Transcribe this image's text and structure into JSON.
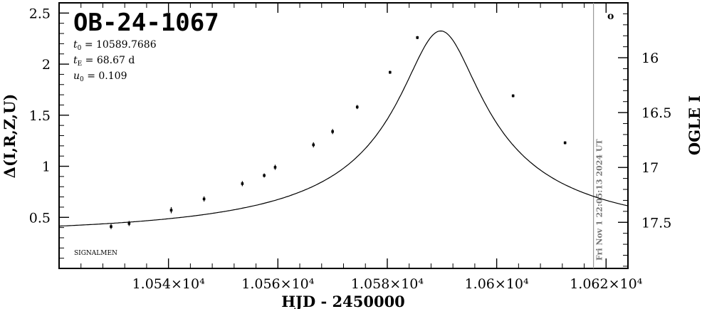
{
  "chart_data": {
    "type": "scatter",
    "title": "OB-24-1067",
    "xlabel": "HJD - 2450000",
    "ylabel_left": "Δ(I,R,Z,U)",
    "ylabel_right": "OGLE I",
    "xlim": [
      10520,
      10624
    ],
    "ylim_left": [
      0.0,
      2.6
    ],
    "ylim_right": [
      17.92,
      15.5
    ],
    "x_ticks": [
      10540,
      10560,
      10580,
      10600,
      10620
    ],
    "x_tick_labels": [
      "1.054×10⁴",
      "1.056×10⁴",
      "1.058×10⁴",
      "1.06×10⁴",
      "1.062×10⁴"
    ],
    "y_ticks_left": [
      0.5,
      1,
      1.5,
      2,
      2.5
    ],
    "y_tick_labels_left": [
      "0.5",
      "1",
      "1.5",
      "2",
      "2.5"
    ],
    "y_ticks_right": [
      16,
      16.5,
      17,
      17.5
    ],
    "y_tick_labels_right": [
      "16",
      "16.5",
      "17",
      "17.5"
    ],
    "params": [
      {
        "sym": "t",
        "sub": "0",
        "text": " = 10589.7686"
      },
      {
        "sym": "t",
        "sub": "E",
        "text": " = 68.67 d"
      },
      {
        "sym": "u",
        "sub": "0",
        "text": " = 0.109"
      }
    ],
    "model": {
      "t0": 10589.7686,
      "tE": 68.67,
      "u0": 0.109,
      "baseline_offset": 0.33
    },
    "series": [
      {
        "points": [
          {
            "x": 10529.5,
            "y": 0.41,
            "err": 0.025
          },
          {
            "x": 10532.8,
            "y": 0.44,
            "err": 0.025
          },
          {
            "x": 10540.5,
            "y": 0.57,
            "err": 0.03
          },
          {
            "x": 10546.5,
            "y": 0.68,
            "err": 0.025
          },
          {
            "x": 10553.5,
            "y": 0.83,
            "err": 0.025
          },
          {
            "x": 10557.5,
            "y": 0.91,
            "err": 0.02
          },
          {
            "x": 10559.5,
            "y": 0.99,
            "err": 0.025
          },
          {
            "x": 10566.5,
            "y": 1.21,
            "err": 0.025
          },
          {
            "x": 10570.0,
            "y": 1.34,
            "err": 0.025
          },
          {
            "x": 10574.5,
            "y": 1.58,
            "err": 0.02
          },
          {
            "x": 10580.5,
            "y": 1.92,
            "err": 0.015
          },
          {
            "x": 10585.5,
            "y": 2.26,
            "err": 0.015
          },
          {
            "x": 10603.0,
            "y": 1.69,
            "err": 0.015
          },
          {
            "x": 10612.5,
            "y": 1.23,
            "err": 0.015
          }
        ]
      }
    ],
    "now_line": {
      "x": 10617.7,
      "label": "Fri Nov  1 22:05:13 2024 UT"
    },
    "corner_label": "SIGNALMEN",
    "marker": "o"
  }
}
